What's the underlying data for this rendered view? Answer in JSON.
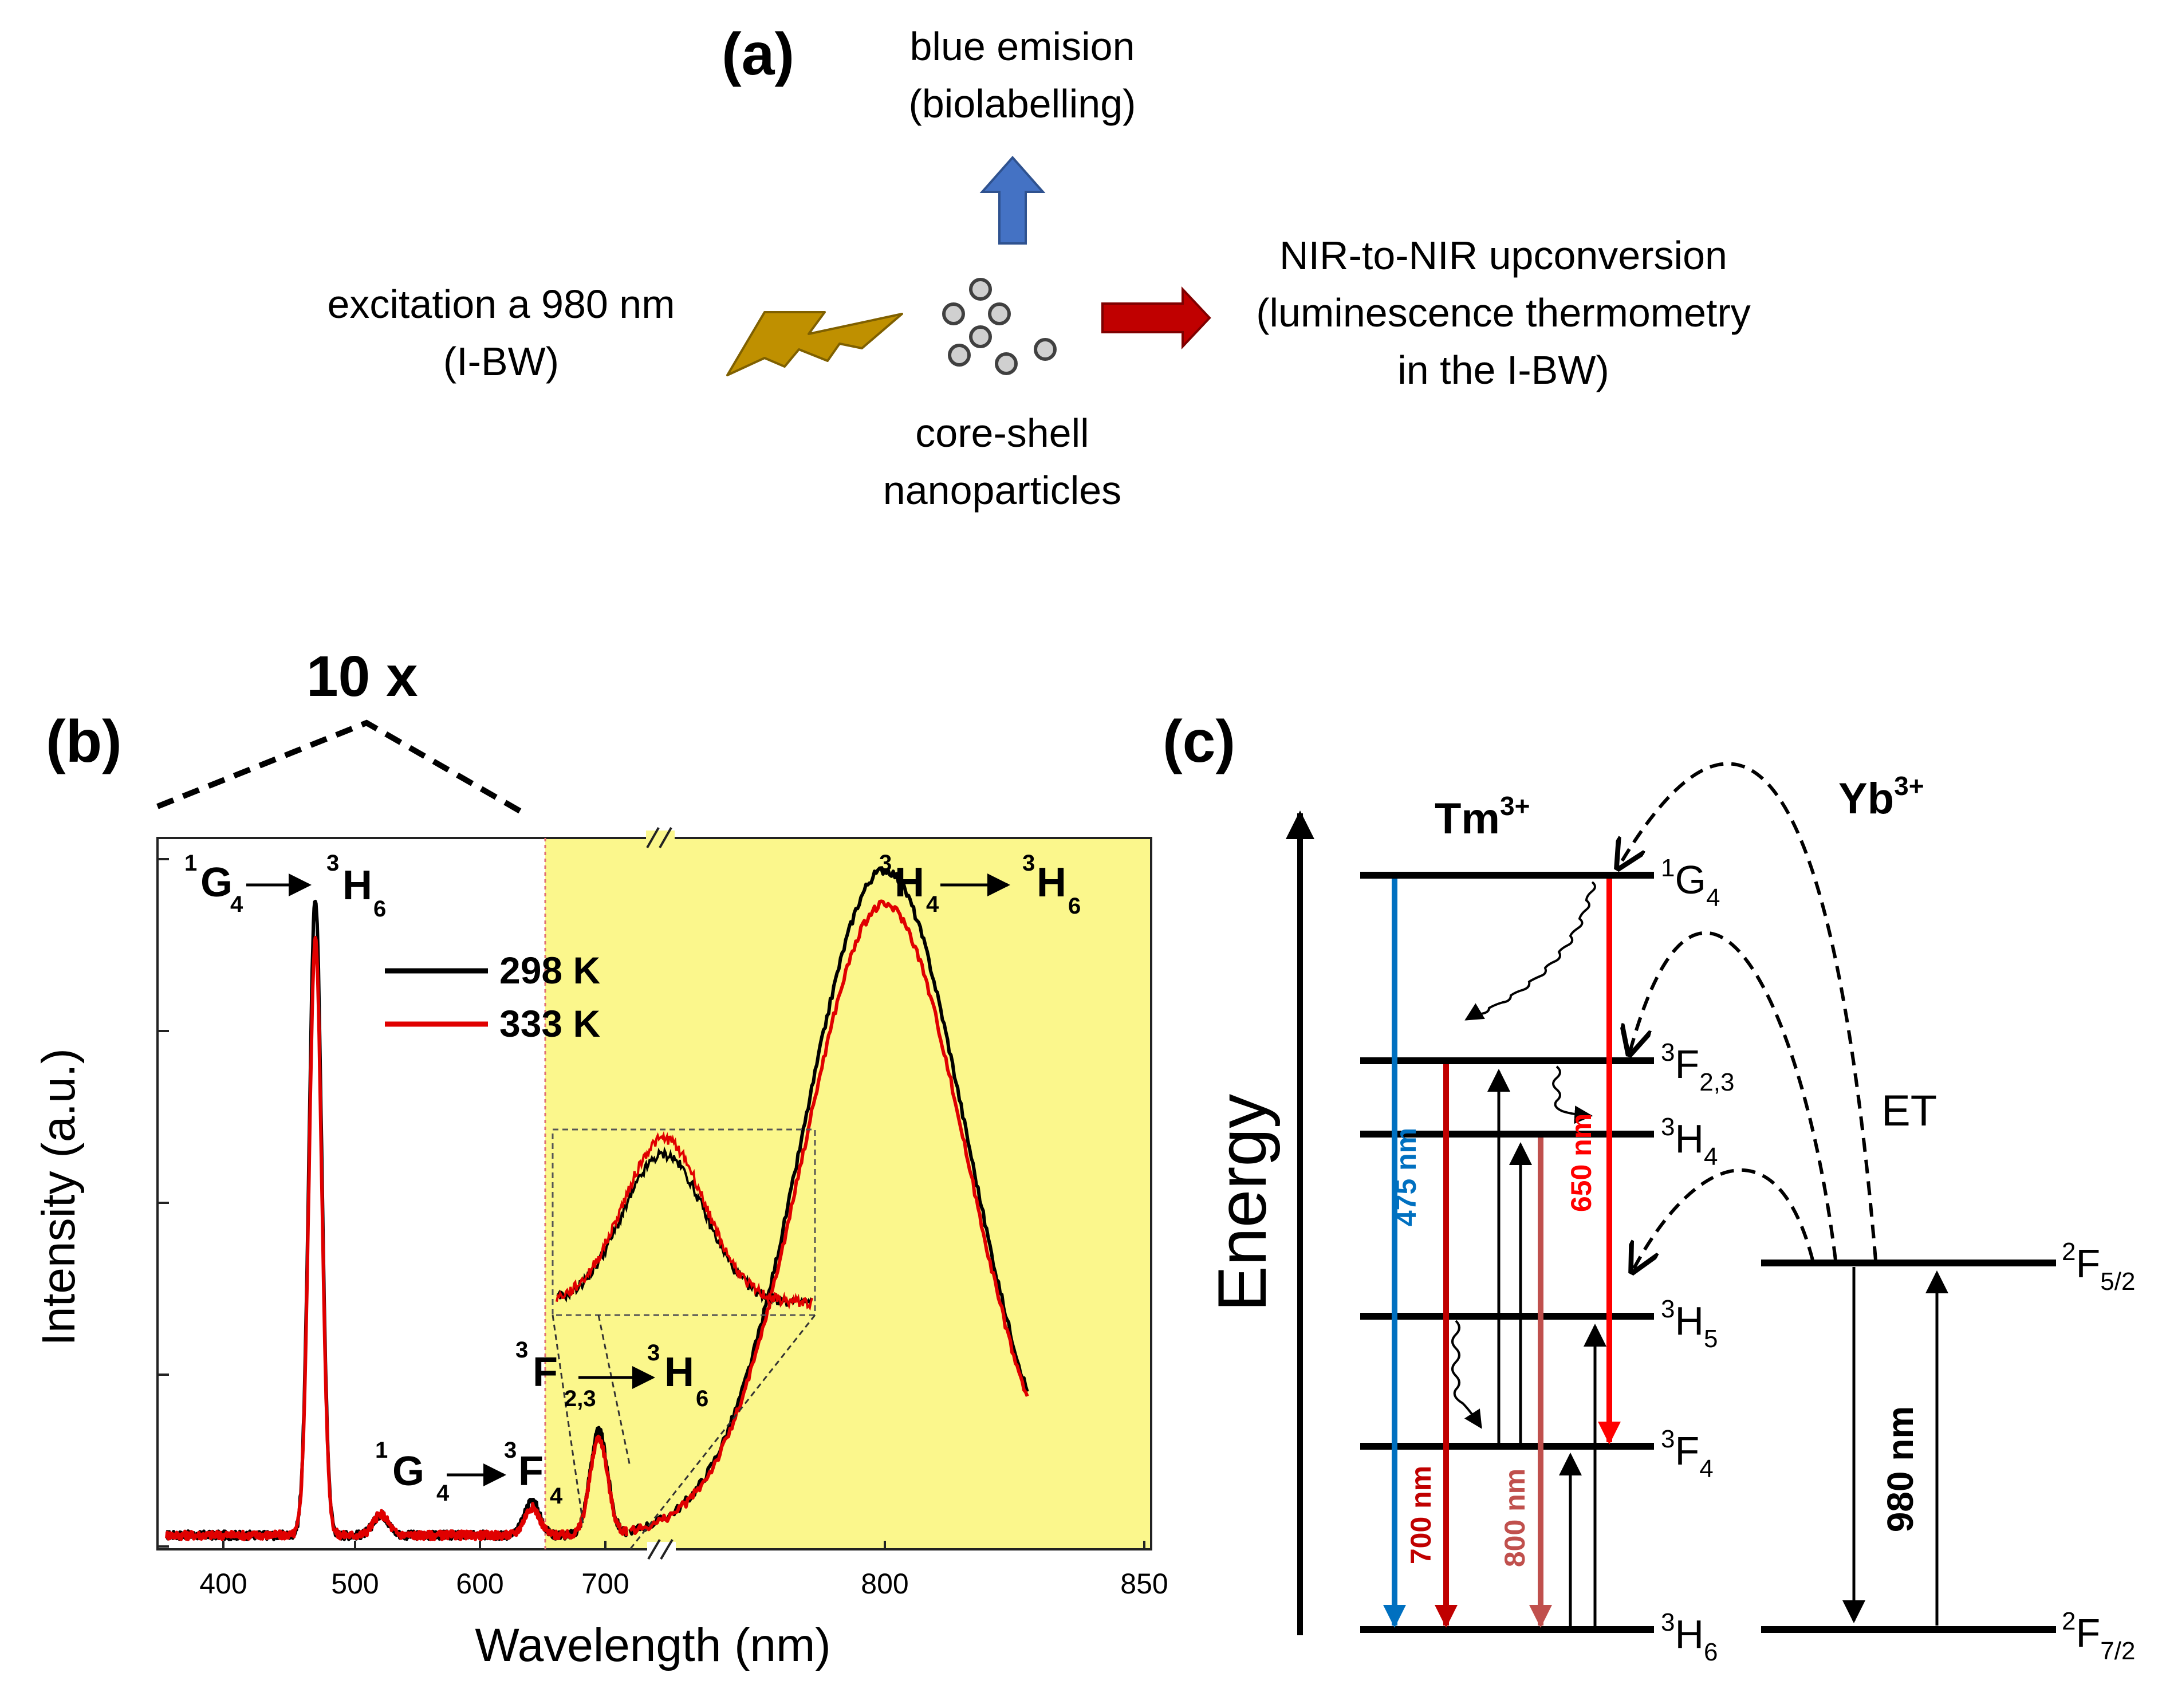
{
  "panel_a": {
    "label": "(a)",
    "blue_emission": [
      "blue emision",
      "(biolabelling)"
    ],
    "excitation": [
      "excitation a 980 nm",
      "(I-BW)"
    ],
    "particles": [
      "core-shell",
      "nanoparticles"
    ],
    "nir": [
      "NIR-to-NIR upconversion",
      "(luminescence thermometry",
      "in the I-BW)"
    ],
    "colors": {
      "blue_arrow": "#4472c4",
      "red_arrow": "#c00000",
      "bolt": "#bf9000",
      "particle": "#d0d0d0"
    }
  },
  "panel_b": {
    "label": "(b)",
    "magnification": "10 x",
    "axis_break": "//",
    "transitions": {
      "g4_h6": {
        "a": "1",
        "b": "G",
        "c": "4",
        "d": "3",
        "e": "H",
        "f": "6"
      },
      "g4_f4": {
        "a": "1",
        "b": "G",
        "c": "4",
        "d": "3",
        "e": "F",
        "f": "4"
      },
      "f23_h6": {
        "a": "3",
        "b": "F",
        "c": "2,3",
        "d": "3",
        "e": "H",
        "f": "6"
      },
      "h4_h6": {
        "a": "3",
        "b": "H",
        "c": "4",
        "d": "3",
        "e": "H",
        "f": "6"
      }
    },
    "colors": {
      "black": "#000000",
      "red": "#e00000",
      "highlight": "#fbf78c"
    }
  },
  "chart_data": {
    "type": "line",
    "title": "",
    "xlabel": "Wavelength (nm)",
    "ylabel": "Intensity (a.u.)",
    "xticks": [
      "400",
      "500",
      "600",
      "700",
      "800",
      "850"
    ],
    "xlim": [
      350,
      850
    ],
    "ylim": [
      0,
      1.0
    ],
    "note": "x-axis broken between 720 and 725 nm; 350-650 nm region magnified 10x",
    "series": [
      {
        "name": "298 K",
        "color": "#000000",
        "peaks": [
          [
            473,
            0.92
          ],
          [
            525,
            0.03
          ],
          [
            645,
            0.05
          ],
          [
            698,
            0.15
          ],
          [
            800,
            0.96
          ]
        ]
      },
      {
        "name": "333 K",
        "color": "#e00000",
        "peaks": [
          [
            473,
            0.86
          ],
          [
            525,
            0.03
          ],
          [
            645,
            0.04
          ],
          [
            698,
            0.14
          ],
          [
            800,
            0.91
          ]
        ]
      }
    ]
  },
  "panel_c": {
    "label": "(c)",
    "energy_label": "Energy",
    "tm_label": {
      "base": "Tm",
      "sup": "3+"
    },
    "yb_label": {
      "base": "Yb",
      "sup": "3+"
    },
    "et_label": "ET",
    "levels": [
      {
        "sup": "1",
        "base": "G",
        "sub": "4"
      },
      {
        "sup": "3",
        "base": "F",
        "sub": "2,3"
      },
      {
        "sup": "3",
        "base": "H",
        "sub": "4"
      },
      {
        "sup": "3",
        "base": "H",
        "sub": "5"
      },
      {
        "sup": "3",
        "base": "F",
        "sub": "4"
      },
      {
        "sup": "3",
        "base": "H",
        "sub": "6"
      }
    ],
    "yb_levels": [
      {
        "sup": "2",
        "base": "F",
        "sub": "5/2"
      },
      {
        "sup": "2",
        "base": "F",
        "sub": "7/2"
      }
    ],
    "emissions": {
      "nm475": "475 nm",
      "nm650": "650 nm",
      "nm700": "700 nm",
      "nm800": "800 nm",
      "nm980": "980 nm"
    },
    "colors": {
      "c475": "#0070c0",
      "c650": "#ff0000",
      "c700": "#c00000",
      "c800": "#c0504d"
    }
  }
}
